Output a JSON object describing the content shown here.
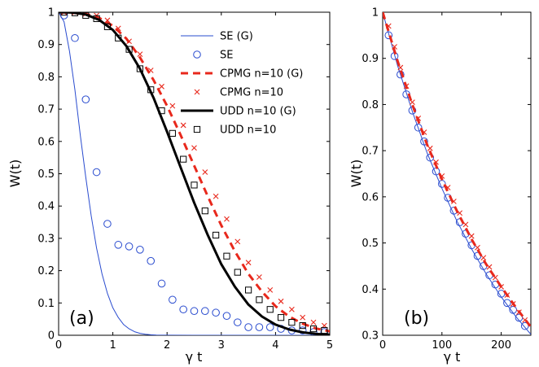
{
  "chart_data": [
    {
      "type": "line",
      "panel_label": "(a)",
      "xlabel": "γ t",
      "ylabel": "W(t)",
      "xlim": [
        0,
        5
      ],
      "ylim": [
        0,
        1
      ],
      "xticks": [
        "0",
        "1",
        "2",
        "3",
        "4",
        "5"
      ],
      "yticks": [
        "0",
        "0.1",
        "0.2",
        "0.3",
        "0.4",
        "0.5",
        "0.6",
        "0.7",
        "0.8",
        "0.9",
        "1"
      ],
      "grid": false,
      "legend_position": "top-right",
      "series": [
        {
          "name": "SE (G)",
          "style": "line",
          "color": "#2a4ccf",
          "x": [
            0,
            0.1,
            0.2,
            0.3,
            0.4,
            0.5,
            0.6,
            0.7,
            0.8,
            0.9,
            1.0,
            1.1,
            1.2,
            1.3,
            1.4,
            1.5,
            1.6,
            1.7,
            1.8,
            2.0,
            2.5,
            3,
            3.5,
            4,
            4.5,
            5
          ],
          "y": [
            1,
            0.97,
            0.88,
            0.76,
            0.62,
            0.49,
            0.37,
            0.27,
            0.19,
            0.13,
            0.085,
            0.055,
            0.033,
            0.02,
            0.011,
            0.006,
            0.003,
            0.0015,
            0.0008,
            0.0002,
            0,
            0,
            0,
            0,
            0,
            0
          ]
        },
        {
          "name": "SE",
          "style": "circle",
          "color": "#2a4ccf",
          "x": [
            0.1,
            0.3,
            0.5,
            0.7,
            0.9,
            1.1,
            1.3,
            1.5,
            1.7,
            1.9,
            2.1,
            2.3,
            2.5,
            2.7,
            2.9,
            3.1,
            3.3,
            3.5,
            3.7,
            3.9,
            4.1,
            4.3,
            4.5,
            4.7,
            4.9
          ],
          "y": [
            0.99,
            0.92,
            0.73,
            0.505,
            0.345,
            0.28,
            0.275,
            0.265,
            0.23,
            0.16,
            0.11,
            0.08,
            0.075,
            0.075,
            0.07,
            0.06,
            0.04,
            0.025,
            0.025,
            0.025,
            0.02,
            0.015,
            0.015,
            0.01,
            0.01
          ]
        },
        {
          "name": "CPMG n=10 (G)",
          "style": "dashed",
          "color": "#e8281c",
          "x": [
            0,
            0.25,
            0.5,
            0.75,
            1.0,
            1.25,
            1.5,
            1.75,
            2.0,
            2.25,
            2.5,
            2.75,
            3.0,
            3.25,
            3.5,
            3.75,
            4.0,
            4.25,
            4.5,
            4.75,
            5.0
          ],
          "y": [
            1,
            0.999,
            0.995,
            0.982,
            0.958,
            0.918,
            0.86,
            0.79,
            0.71,
            0.62,
            0.525,
            0.43,
            0.34,
            0.26,
            0.19,
            0.135,
            0.09,
            0.058,
            0.036,
            0.021,
            0.012
          ]
        },
        {
          "name": "CPMG n=10",
          "style": "cross",
          "color": "#e8281c",
          "x": [
            0.1,
            0.3,
            0.5,
            0.7,
            0.9,
            1.1,
            1.3,
            1.5,
            1.7,
            1.9,
            2.1,
            2.3,
            2.5,
            2.7,
            2.9,
            3.1,
            3.3,
            3.5,
            3.7,
            3.9,
            4.1,
            4.3,
            4.5,
            4.7,
            4.9
          ],
          "y": [
            1.0,
            1.0,
            0.995,
            0.99,
            0.975,
            0.95,
            0.91,
            0.87,
            0.82,
            0.77,
            0.71,
            0.65,
            0.58,
            0.505,
            0.43,
            0.36,
            0.29,
            0.225,
            0.18,
            0.14,
            0.105,
            0.08,
            0.055,
            0.04,
            0.03
          ]
        },
        {
          "name": "UDD n=10 (G)",
          "style": "thick",
          "color": "#000000",
          "x": [
            0,
            0.25,
            0.5,
            0.75,
            1.0,
            1.25,
            1.5,
            1.75,
            2.0,
            2.25,
            2.5,
            2.75,
            3.0,
            3.25,
            3.5,
            3.75,
            4.0,
            4.25,
            4.5,
            4.75,
            5.0
          ],
          "y": [
            1,
            0.999,
            0.993,
            0.976,
            0.945,
            0.895,
            0.825,
            0.735,
            0.63,
            0.52,
            0.41,
            0.31,
            0.22,
            0.15,
            0.095,
            0.058,
            0.033,
            0.018,
            0.009,
            0.004,
            0.002
          ]
        },
        {
          "name": "UDD n=10",
          "style": "square",
          "color": "#000000",
          "x": [
            0.1,
            0.3,
            0.5,
            0.7,
            0.9,
            1.1,
            1.3,
            1.5,
            1.7,
            1.9,
            2.1,
            2.3,
            2.5,
            2.7,
            2.9,
            3.1,
            3.3,
            3.5,
            3.7,
            3.9,
            4.1,
            4.3,
            4.5,
            4.7,
            4.9
          ],
          "y": [
            1.0,
            0.998,
            0.99,
            0.98,
            0.955,
            0.92,
            0.885,
            0.825,
            0.76,
            0.695,
            0.625,
            0.545,
            0.465,
            0.385,
            0.31,
            0.245,
            0.195,
            0.14,
            0.11,
            0.08,
            0.055,
            0.04,
            0.03,
            0.02,
            0.015
          ]
        }
      ]
    },
    {
      "type": "line",
      "panel_label": "(b)",
      "xlabel": "γ t",
      "ylabel": "W(t)",
      "xlim": [
        0,
        250
      ],
      "ylim": [
        0.3,
        1
      ],
      "xticks": [
        "0",
        "100",
        "200"
      ],
      "yticks": [
        "0.3",
        "0.4",
        "0.5",
        "0.6",
        "0.7",
        "0.8",
        "0.9",
        "1"
      ],
      "grid": false,
      "series": [
        {
          "style": "line",
          "color": "#2a4ccf",
          "x": [
            0,
            25,
            50,
            75,
            100,
            125,
            150,
            175,
            200,
            225,
            250
          ],
          "y": [
            1.0,
            0.885,
            0.785,
            0.695,
            0.618,
            0.548,
            0.487,
            0.432,
            0.383,
            0.34,
            0.302
          ]
        },
        {
          "style": "circle",
          "color": "#2a4ccf",
          "x": [
            10,
            20,
            30,
            40,
            50,
            60,
            70,
            80,
            90,
            100,
            110,
            120,
            130,
            140,
            150,
            160,
            170,
            180,
            190,
            200,
            210,
            220,
            230,
            240
          ],
          "y": [
            0.95,
            0.905,
            0.865,
            0.822,
            0.787,
            0.75,
            0.72,
            0.685,
            0.655,
            0.628,
            0.598,
            0.57,
            0.545,
            0.52,
            0.495,
            0.472,
            0.45,
            0.43,
            0.41,
            0.39,
            0.37,
            0.355,
            0.338,
            0.32
          ]
        },
        {
          "style": "dashed",
          "color": "#e8281c",
          "x": [
            0,
            25,
            50,
            75,
            100,
            125,
            150,
            175,
            200,
            225,
            250
          ],
          "y": [
            1.0,
            0.895,
            0.8,
            0.713,
            0.638,
            0.57,
            0.508,
            0.453,
            0.405,
            0.36,
            0.318
          ]
        },
        {
          "style": "cross",
          "color": "#e8281c",
          "x": [
            10,
            20,
            30,
            40,
            50,
            60,
            70,
            80,
            90,
            100,
            110,
            120,
            130,
            140,
            150,
            160,
            170,
            180,
            190,
            200,
            210,
            220,
            230,
            240
          ],
          "y": [
            0.97,
            0.925,
            0.88,
            0.84,
            0.805,
            0.77,
            0.74,
            0.705,
            0.675,
            0.645,
            0.62,
            0.59,
            0.565,
            0.54,
            0.515,
            0.49,
            0.468,
            0.448,
            0.425,
            0.405,
            0.387,
            0.368,
            0.35,
            0.333
          ]
        }
      ]
    }
  ]
}
